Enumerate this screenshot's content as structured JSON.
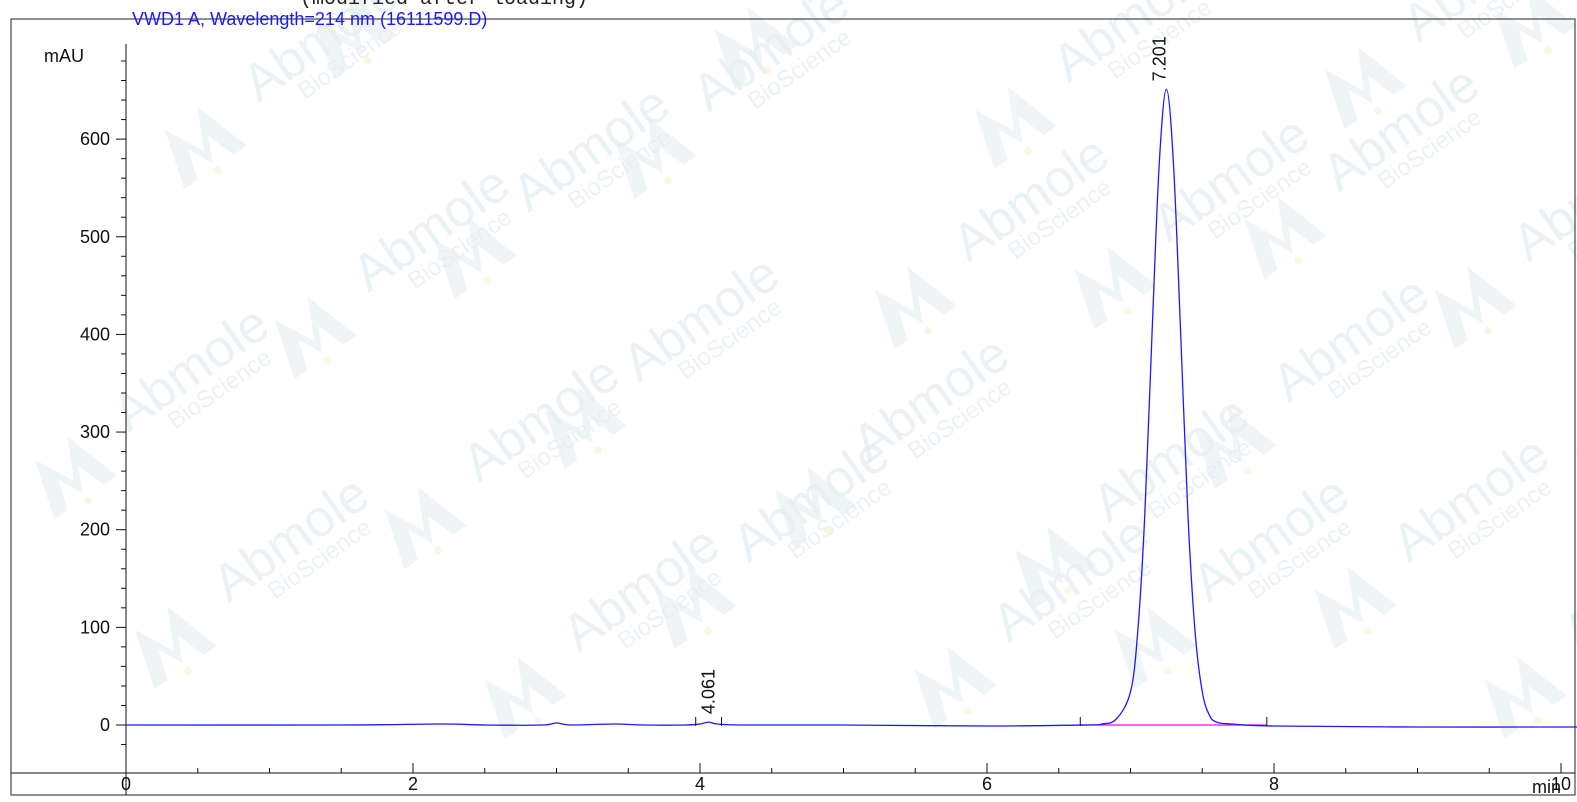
{
  "header": {
    "cut_title": "(modified after loading)",
    "signal_title": "VWD1 A, Wavelength=214 nm (16111599.D)"
  },
  "watermark": {
    "brand": "Abmole",
    "sub": "BioScience"
  },
  "colors": {
    "trace": "#1a1aff",
    "baseline": "#ff00ff",
    "axis": "#111111",
    "watermark": "#dbe8ee"
  },
  "chart_data": {
    "type": "line",
    "title": "VWD1 A, Wavelength=214 nm (16111599.D)",
    "xlabel": "min",
    "ylabel": "mAU",
    "xlim": [
      0,
      10.2
    ],
    "ylim": [
      -35,
      692
    ],
    "x_ticks": [
      0,
      2,
      4,
      6,
      8,
      10
    ],
    "x_tick_labels": [
      "0",
      "2",
      "4",
      "6",
      "8",
      "10"
    ],
    "y_ticks": [
      0,
      100,
      200,
      300,
      400,
      500,
      600
    ],
    "y_tick_labels": [
      "0",
      "100",
      "200",
      "300",
      "400",
      "500",
      "600"
    ],
    "grid": false,
    "series": [
      {
        "x": [
          0,
          1.5,
          2.2,
          2.5,
          2.9,
          3.0,
          3.1,
          3.4,
          3.6,
          3.9,
          4.0,
          4.061,
          4.12,
          4.3,
          5.0,
          6.0,
          6.7,
          6.8,
          6.9,
          7.0,
          7.05,
          7.1,
          7.15,
          7.2,
          7.25,
          7.3,
          7.35,
          7.4,
          7.45,
          7.5,
          7.55,
          7.6,
          7.7,
          8.0,
          9.0,
          10.2
        ],
        "y": [
          0,
          0,
          1,
          0,
          0,
          2,
          0,
          1,
          0,
          0,
          1,
          3,
          1,
          0,
          0,
          -1,
          0,
          1,
          6,
          34,
          95,
          216,
          400,
          574,
          651,
          574,
          400,
          216,
          95,
          34,
          10,
          3,
          1,
          -1,
          -2,
          -2
        ]
      }
    ],
    "baselines": [
      {
        "x": [
          6.65,
          7.95
        ],
        "y": [
          0,
          0
        ]
      }
    ],
    "peaks": [
      {
        "label": "4.061",
        "x": 4.061,
        "y": 3,
        "start": 3.97,
        "end": 4.15
      },
      {
        "label": "7.201",
        "x": 7.201,
        "y": 651,
        "start": 6.65,
        "end": 7.95
      }
    ]
  }
}
